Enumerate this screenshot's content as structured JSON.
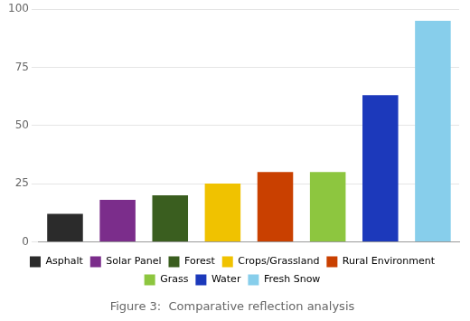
{
  "chart_data": {
    "type": "bar",
    "title": "Figure 3:  Comparative reflection analysis",
    "categories": [
      "Asphalt",
      "Solar Panel",
      "Forest",
      "Crops/Grassland",
      "Rural Environment",
      "Grass",
      "Water",
      "Fresh Snow"
    ],
    "values": [
      12,
      18,
      20,
      25,
      30,
      30,
      63,
      95
    ],
    "colors": [
      "#2b2b2b",
      "#7b2d8b",
      "#3a5e1f",
      "#f0c200",
      "#c94000",
      "#8dc63f",
      "#1c39bb",
      "#87ceeb"
    ],
    "ylim": [
      0,
      100
    ],
    "yticks": [
      0,
      25,
      50,
      75,
      100
    ],
    "grid": true,
    "tick_labels": "y",
    "legend": "bottom"
  }
}
